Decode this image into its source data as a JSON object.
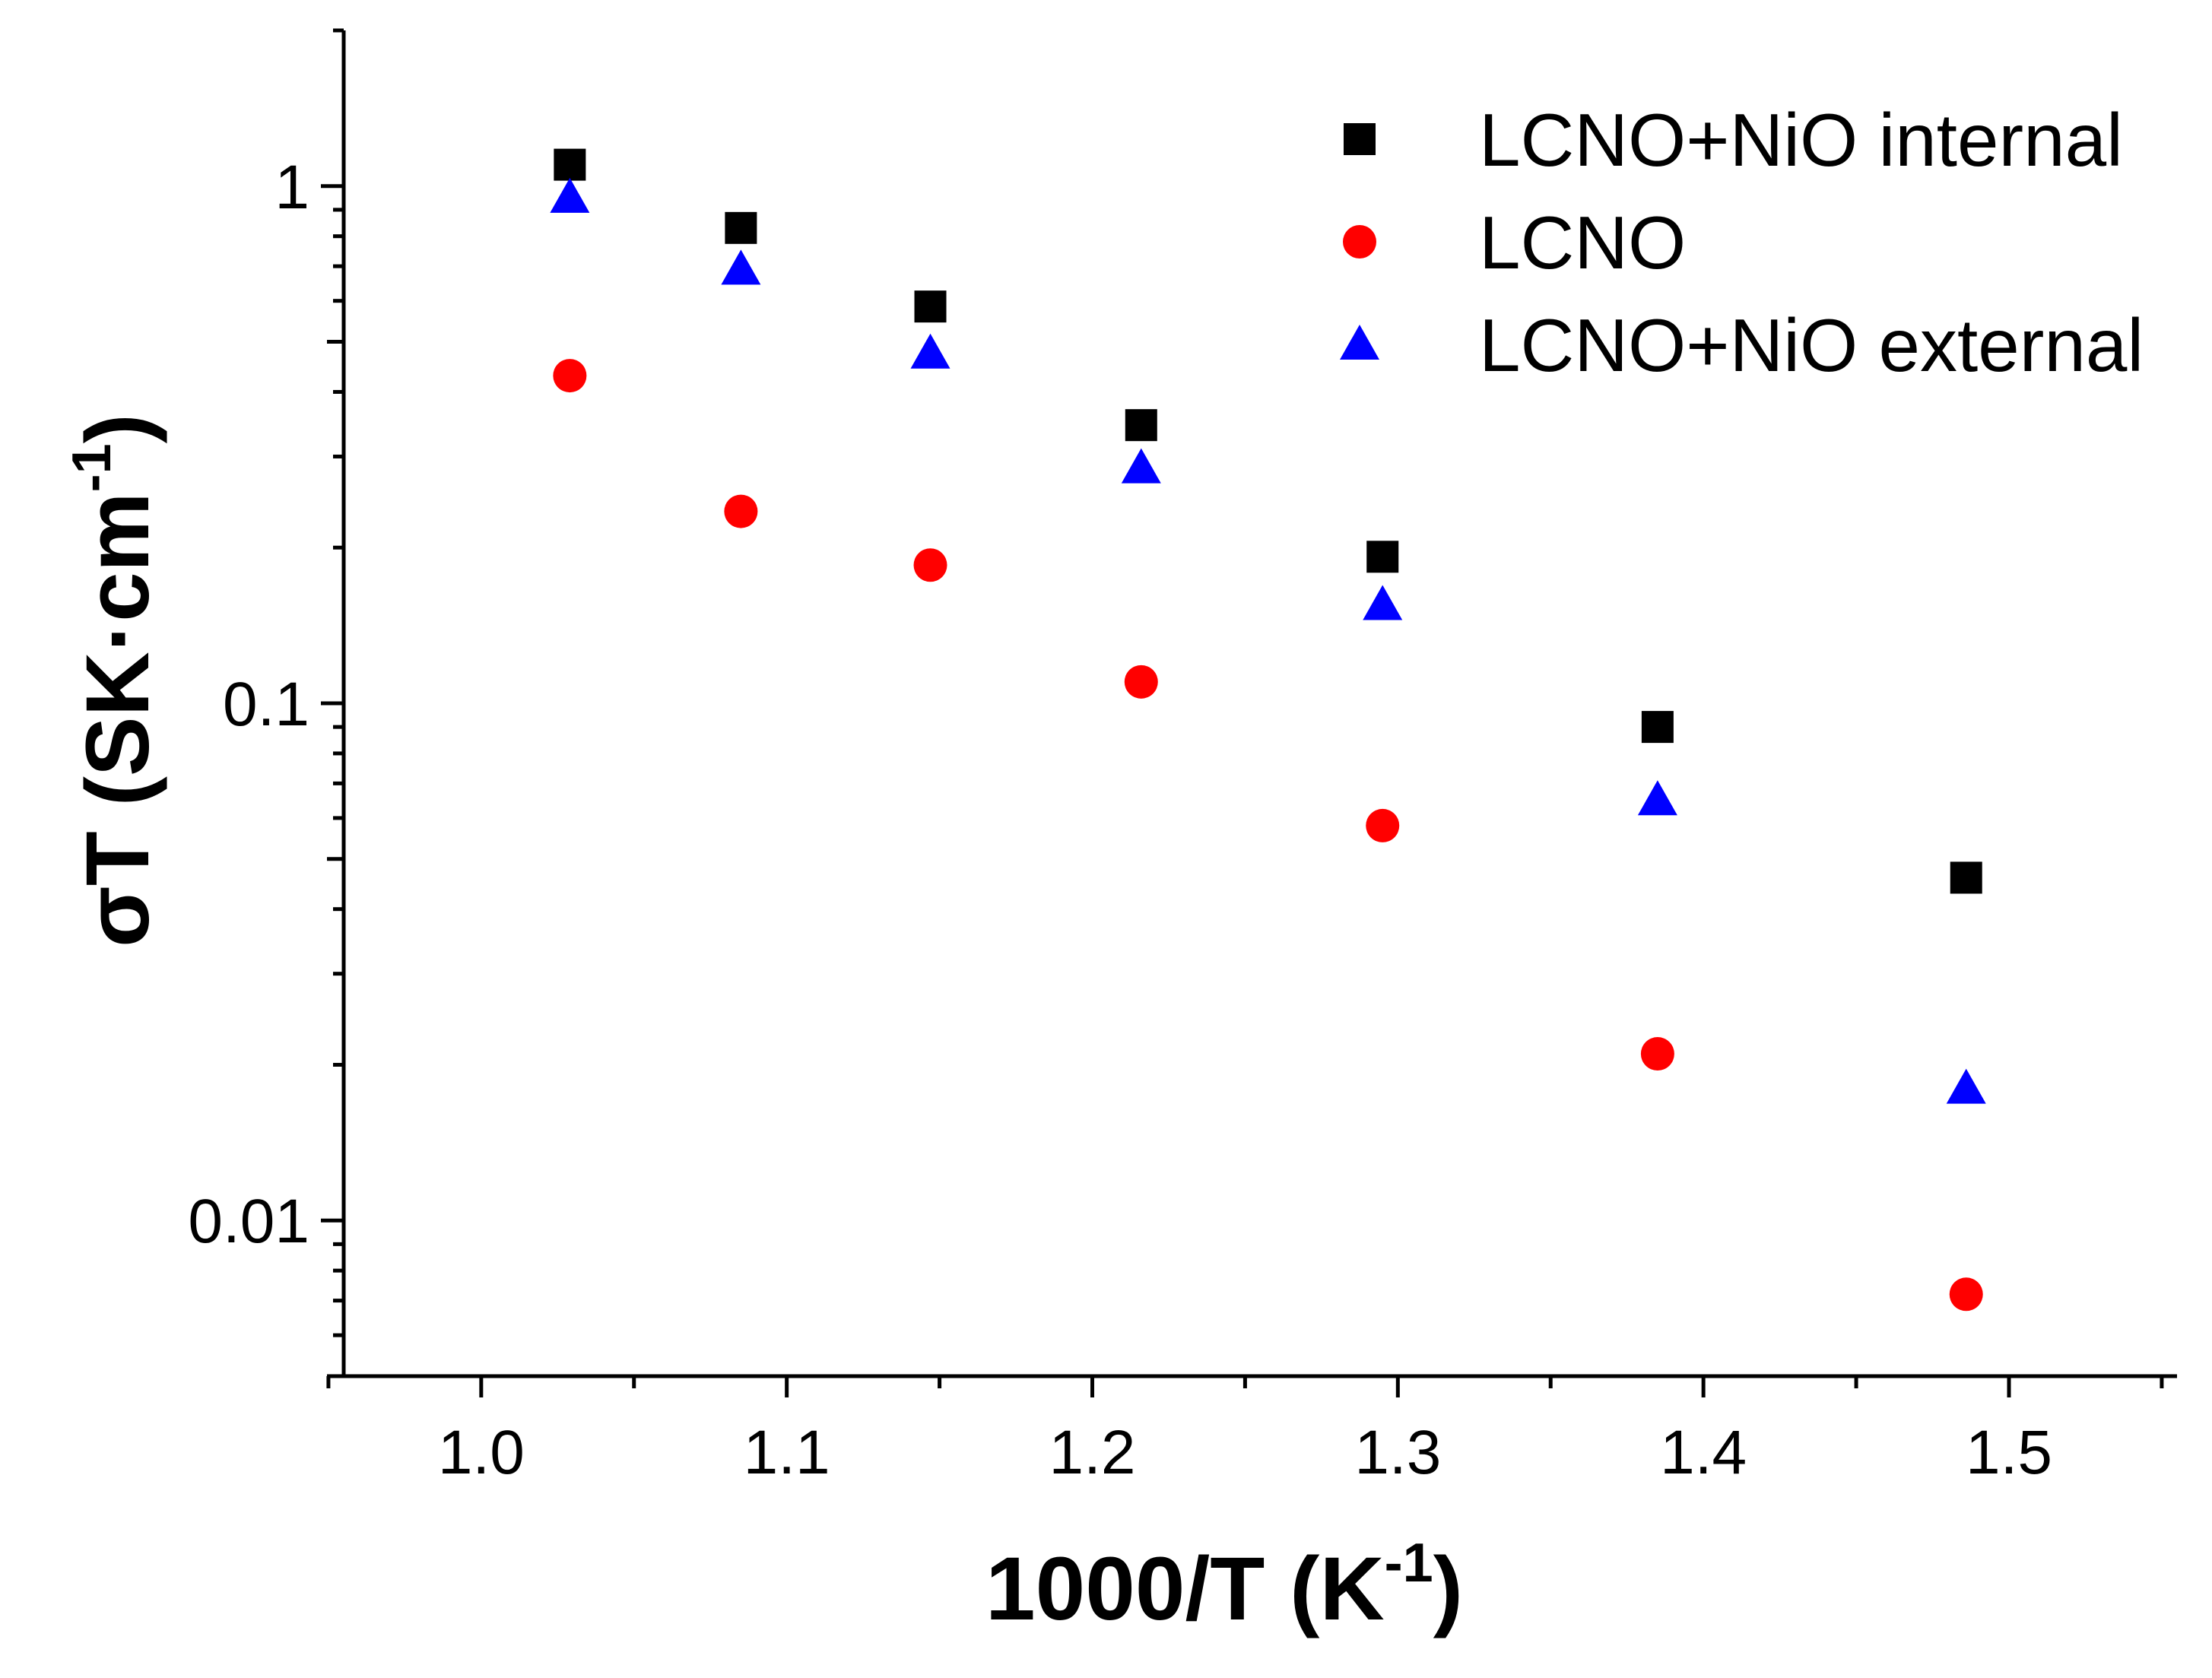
{
  "chart_data": {
    "type": "scatter",
    "title": "",
    "xlabel": {
      "main": "1000/T (K",
      "sup": "-1",
      "close": ")"
    },
    "ylabel": {
      "main": "σT (SK·cm",
      "sup": "-1",
      "close": ")"
    },
    "xlim": [
      0.955,
      1.555
    ],
    "ylim": [
      0.005,
      2.0
    ],
    "yscale": "log",
    "x_ticks": [
      {
        "value": 1.0,
        "label": "1.0"
      },
      {
        "value": 1.1,
        "label": "1.1"
      },
      {
        "value": 1.2,
        "label": "1.2"
      },
      {
        "value": 1.3,
        "label": "1.3"
      },
      {
        "value": 1.4,
        "label": "1.4"
      },
      {
        "value": 1.5,
        "label": "1.5"
      }
    ],
    "y_ticks": [
      {
        "value": 0.01,
        "label": "0.01"
      },
      {
        "value": 0.1,
        "label": "0.1"
      },
      {
        "value": 1,
        "label": "1"
      }
    ],
    "legend_position": "top-right",
    "series": [
      {
        "name": "LCNO+NiO internal",
        "marker": "square",
        "color": "#000000",
        "x": [
          1.029,
          1.085,
          1.147,
          1.216,
          1.295,
          1.385,
          1.486
        ],
        "y": [
          1.1,
          0.83,
          0.585,
          0.345,
          0.192,
          0.09,
          0.046
        ]
      },
      {
        "name": "LCNO",
        "marker": "circle",
        "color": "#ff0000",
        "x": [
          1.029,
          1.085,
          1.147,
          1.216,
          1.295,
          1.385,
          1.486
        ],
        "y": [
          0.43,
          0.235,
          0.185,
          0.11,
          0.058,
          0.021,
          0.0072
        ]
      },
      {
        "name": "LCNO+NiO external",
        "marker": "triangle",
        "color": "#0000ff",
        "x": [
          1.029,
          1.085,
          1.147,
          1.216,
          1.295,
          1.385,
          1.486
        ],
        "y": [
          0.95,
          0.69,
          0.475,
          0.285,
          0.155,
          0.065,
          0.018
        ]
      }
    ]
  }
}
